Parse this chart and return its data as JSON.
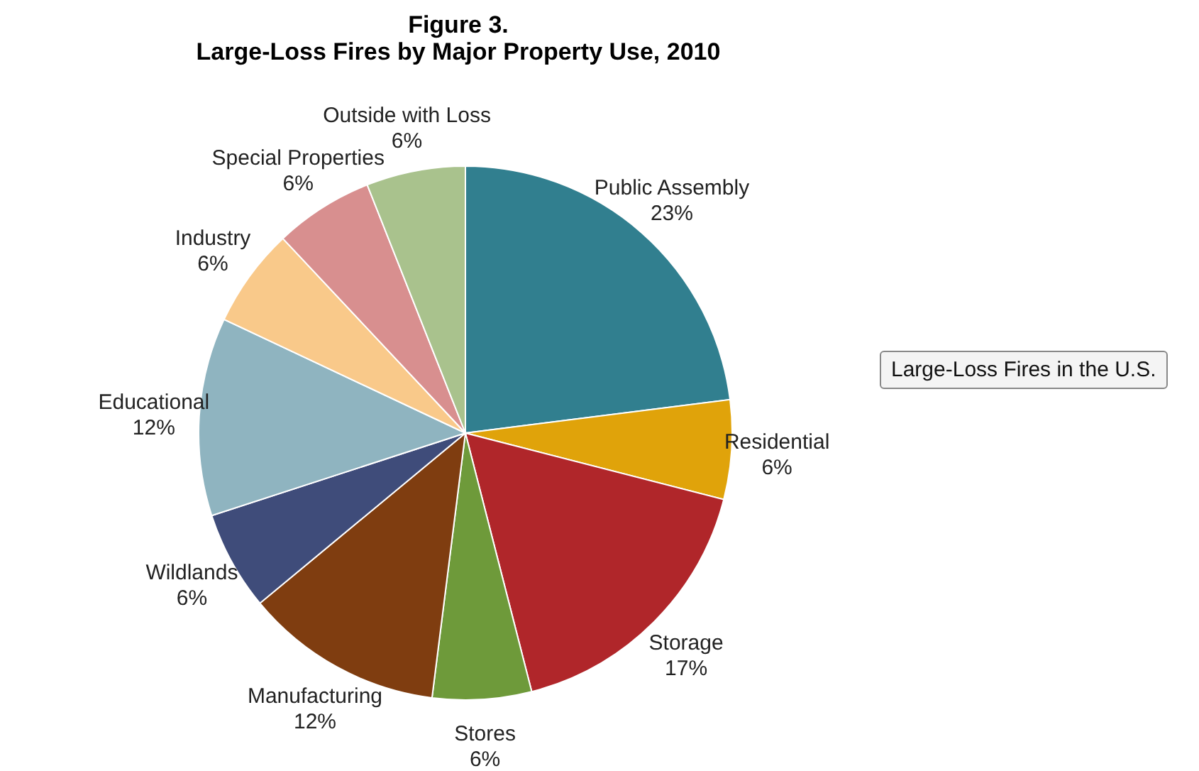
{
  "chart_data": {
    "type": "pie",
    "title": "Figure 3.",
    "subtitle": "Large-Loss Fires by Major Property Use, 2010",
    "categories": [
      "Public Assembly",
      "Residential",
      "Storage",
      "Stores",
      "Manufacturing",
      "Wildlands",
      "Educational",
      "Industry",
      "Special Properties",
      "Outside with Loss"
    ],
    "values": [
      23,
      6,
      17,
      6,
      12,
      6,
      12,
      6,
      6,
      6
    ],
    "value_labels": [
      "23%",
      "6%",
      "17%",
      "6%",
      "12%",
      "6%",
      "12%",
      "6%",
      "6%",
      "6%"
    ],
    "colors": [
      "#317f8f",
      "#e0a30a",
      "#b0262a",
      "#6e9a3a",
      "#7f3d10",
      "#3f4c7a",
      "#8fb4c0",
      "#f9c98a",
      "#d88f8f",
      "#a9c28d"
    ],
    "legend": false,
    "annotations": [
      "Large-Loss Fires in the U.S."
    ]
  }
}
